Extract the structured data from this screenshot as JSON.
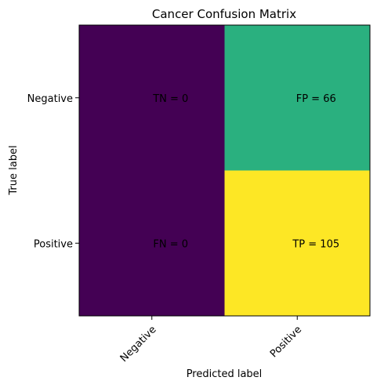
{
  "chart_data": {
    "type": "heatmap",
    "title": "Cancer Confusion Matrix",
    "xlabel": "Predicted label",
    "ylabel": "True label",
    "x_categories": [
      "Negative",
      "Positive"
    ],
    "y_categories": [
      "Negative",
      "Positive"
    ],
    "values": [
      [
        0,
        66
      ],
      [
        0,
        105
      ]
    ],
    "cell_labels": [
      [
        "TN = 0",
        "FP = 66"
      ],
      [
        "FN = 0",
        "TP = 105"
      ]
    ],
    "colormap": "viridis",
    "colors": {
      "low": "#440154",
      "mid": "#2ab07f",
      "high": "#fde725"
    },
    "x_tick_rotation_deg": 45,
    "grid": false
  }
}
